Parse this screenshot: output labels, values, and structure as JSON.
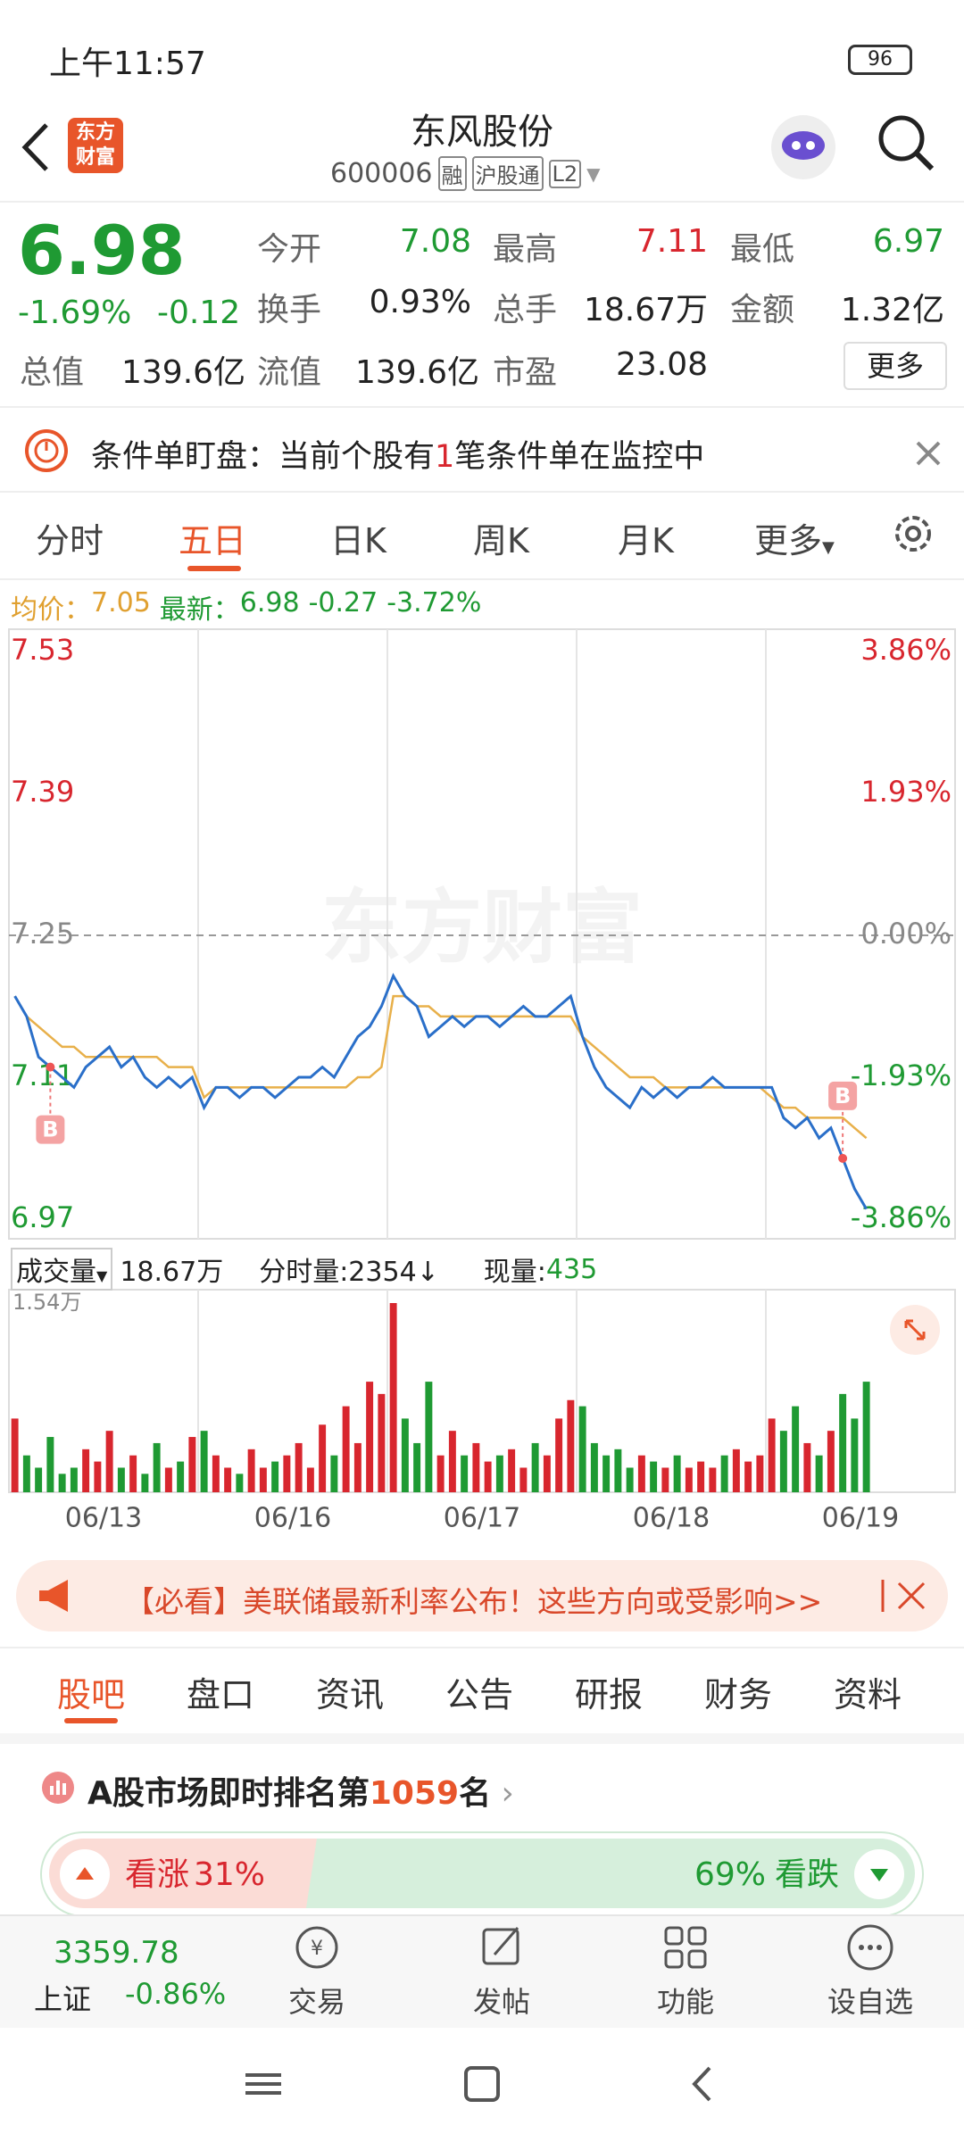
{
  "status_bar": {
    "time": "上午11:57",
    "battery": "96"
  },
  "header": {
    "logo": "东方财富",
    "title": "东风股份",
    "code": "600006",
    "badges": [
      "融",
      "沪股通",
      "L2"
    ]
  },
  "quote": {
    "price": "6.98",
    "change_pct": "-1.69%",
    "change": "-0.12",
    "fields": [
      [
        "今开",
        "7.08"
      ],
      [
        "最高",
        "7.11"
      ],
      [
        "最低",
        "6.97"
      ],
      [
        "换手",
        "0.93%"
      ],
      [
        "总手",
        "18.67万"
      ],
      [
        "金额",
        "1.32亿"
      ],
      [
        "总值",
        "139.6亿"
      ],
      [
        "流值",
        "139.6亿"
      ],
      [
        "市盈",
        "23.08"
      ]
    ],
    "more": "更多"
  },
  "notice": {
    "prefix": "条件单盯盘：当前个股有",
    "count": "1",
    "suffix": "笔条件单在监控中"
  },
  "chart_tabs": [
    "分时",
    "五日",
    "日K",
    "周K",
    "月K",
    "更多"
  ],
  "info_line": {
    "avg_label": "均价：",
    "avg": "7.05",
    "latest_label": "最新：",
    "latest": "6.98",
    "change": "-0.27",
    "change_pct": "-3.72%"
  },
  "chart_data": {
    "type": "line",
    "watermark": "东方财富",
    "categories": [
      "06/13",
      "06/16",
      "06/17",
      "06/18",
      "06/19"
    ],
    "ylim": [
      6.97,
      7.53
    ],
    "yticks": [
      7.53,
      7.39,
      7.25,
      7.11,
      6.97
    ],
    "y2lim": [
      -3.86,
      3.86
    ],
    "y2ticks": [
      {
        "value": 3.86,
        "label": "3.86%"
      },
      {
        "value": 1.93,
        "label": "1.93%"
      },
      {
        "value": 0,
        "label": "0.00%"
      },
      {
        "value": -1.93,
        "label": "-1.93%"
      },
      {
        "value": -3.86,
        "label": "-3.86%"
      }
    ],
    "price_color": "#2a6fc9",
    "avg_color": "#e8b04a",
    "up_color": "#d8262e",
    "down_color": "#1f9a33",
    "buy_markers": [
      "B",
      "B"
    ],
    "days": [
      {
        "price": [
          7.19,
          7.17,
          7.13,
          7.12,
          7.11,
          7.1,
          7.12,
          7.13,
          7.14,
          7.12,
          7.13,
          7.11,
          7.1,
          7.11,
          7.1,
          7.11
        ],
        "avg": [
          7.19,
          7.17,
          7.16,
          7.15,
          7.14,
          7.14,
          7.13,
          7.13,
          7.13,
          7.13,
          7.13,
          7.13,
          7.13,
          7.12,
          7.12,
          7.12
        ],
        "volume": [
          0.6,
          0.3,
          0.2,
          0.45,
          0.15,
          0.2,
          0.35,
          0.25,
          0.5,
          0.2,
          0.3,
          0.15,
          0.4,
          0.2,
          0.25,
          0.45
        ]
      },
      {
        "price": [
          7.08,
          7.1,
          7.1,
          7.09,
          7.1,
          7.1,
          7.09,
          7.1,
          7.11,
          7.11,
          7.12,
          7.11,
          7.13,
          7.15,
          7.16,
          7.18
        ],
        "avg": [
          7.09,
          7.1,
          7.1,
          7.1,
          7.1,
          7.1,
          7.1,
          7.1,
          7.1,
          7.1,
          7.1,
          7.1,
          7.1,
          7.11,
          7.11,
          7.12
        ],
        "volume": [
          0.5,
          0.3,
          0.2,
          0.15,
          0.35,
          0.2,
          0.25,
          0.3,
          0.4,
          0.2,
          0.55,
          0.3,
          0.7,
          0.4,
          0.9,
          0.8
        ]
      },
      {
        "price": [
          7.21,
          7.19,
          7.18,
          7.15,
          7.16,
          7.17,
          7.16,
          7.17,
          7.17,
          7.16,
          7.17,
          7.18,
          7.17,
          7.17,
          7.18,
          7.19
        ],
        "avg": [
          7.19,
          7.19,
          7.18,
          7.18,
          7.17,
          7.17,
          7.17,
          7.17,
          7.17,
          7.17,
          7.17,
          7.17,
          7.17,
          7.17,
          7.17,
          7.17
        ],
        "volume": [
          1.54,
          0.6,
          0.4,
          0.9,
          0.3,
          0.5,
          0.3,
          0.4,
          0.25,
          0.3,
          0.35,
          0.2,
          0.4,
          0.3,
          0.6,
          0.75
        ]
      },
      {
        "price": [
          7.15,
          7.12,
          7.1,
          7.09,
          7.08,
          7.1,
          7.09,
          7.1,
          7.09,
          7.1,
          7.1,
          7.11,
          7.1,
          7.1,
          7.1,
          7.1
        ],
        "avg": [
          7.15,
          7.14,
          7.13,
          7.12,
          7.11,
          7.11,
          7.11,
          7.1,
          7.1,
          7.1,
          7.1,
          7.1,
          7.1,
          7.1,
          7.1,
          7.1
        ],
        "volume": [
          0.7,
          0.4,
          0.3,
          0.35,
          0.2,
          0.3,
          0.25,
          0.2,
          0.3,
          0.2,
          0.25,
          0.2,
          0.3,
          0.35,
          0.25,
          0.3
        ]
      },
      {
        "price": [
          7.1,
          7.07,
          7.06,
          7.07,
          7.05,
          7.06,
          7.03,
          7.0,
          6.98
        ],
        "avg": [
          7.09,
          7.08,
          7.08,
          7.07,
          7.07,
          7.07,
          7.07,
          7.06,
          7.05
        ],
        "volume": [
          0.6,
          0.5,
          0.7,
          0.4,
          0.3,
          0.5,
          0.8,
          0.6,
          0.9
        ]
      }
    ],
    "volume_ylim": [
      0,
      1.54
    ],
    "volume_yticks": [
      {
        "value": 1.54,
        "label": "1.54万"
      }
    ]
  },
  "volume_header": {
    "label": "成交量",
    "total": "18.67万",
    "tick_volume": "分时量:2354↓",
    "current_label": "现量:",
    "current": "435"
  },
  "banner": "【必看】美联储最新利率公布！这些方向或受影响>>",
  "section_tabs": [
    "股吧",
    "盘口",
    "资讯",
    "公告",
    "研报",
    "财务",
    "资料"
  ],
  "ranking": {
    "prefix": "A股市场即时排名第",
    "rank": "1059",
    "suffix": "名"
  },
  "sentiment": {
    "up_label": "看涨",
    "up": 31,
    "up_value_label": "31%",
    "down": 69,
    "down_value_label": "69%",
    "down_label": "看跌"
  },
  "bottom_nav": {
    "index_value": "3359.78",
    "index_name": "上证",
    "index_change": "-0.86%",
    "items": [
      "交易",
      "发帖",
      "功能",
      "设自选"
    ]
  }
}
